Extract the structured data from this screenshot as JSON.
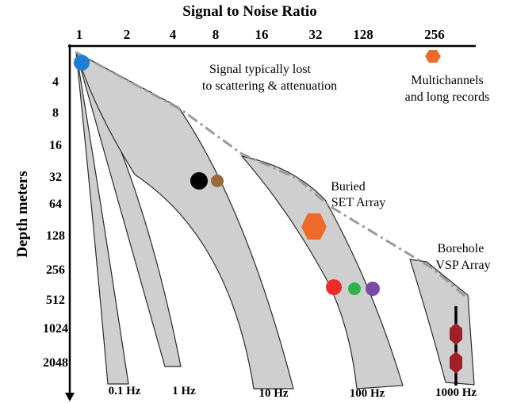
{
  "x_axis": {
    "title": "Signal to Noise Ratio",
    "ticks": [
      "1",
      "2",
      "4",
      "8",
      "16",
      "32",
      "128",
      "256"
    ]
  },
  "y_axis": {
    "title": "Depth meters",
    "ticks": [
      "4",
      "8",
      "16",
      "32",
      "64",
      "128",
      "256",
      "512",
      "1024",
      "2048"
    ]
  },
  "bands": [
    {
      "label": "0.1 Hz"
    },
    {
      "label": "1 Hz"
    },
    {
      "label": "10 Hz"
    },
    {
      "label": "100 Hz"
    },
    {
      "label": "1000 Hz"
    }
  ],
  "annotations": {
    "scatter_line1": "Signal typically lost",
    "scatter_line2": "to scattering & attenuation",
    "multi_line1": "Multichannels",
    "multi_line2": "and long records",
    "buried_line1": "Buried",
    "buried_line2": "SET Array",
    "borehole_line1": "Borehole",
    "borehole_line2": "VSP Array"
  },
  "colors": {
    "band_fill": "#cfcfcf",
    "band_stroke": "#2b2b2b",
    "limit_line": "#9a9a9a",
    "blue_marker": "#1e7fd0",
    "black_marker": "#000000",
    "brown_marker": "#9a6a3a",
    "orange_marker": "#ee6a2a",
    "red_marker": "#ee2a2a",
    "green_marker": "#2ab34a",
    "purple_marker": "#7a4aaa",
    "maroon_marker": "#a0202a"
  }
}
